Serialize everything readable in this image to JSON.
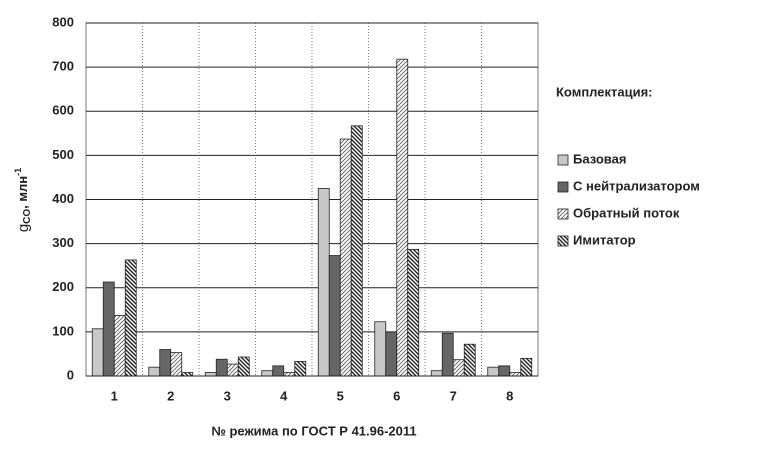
{
  "chart_data": {
    "type": "bar",
    "xlabel": "№ режима по ГОСТ Р 41.96-2011",
    "ylabel": {
      "main": "g",
      "sub": "CO",
      "text": ", млн",
      "sup": "-1"
    },
    "legend_title": "Комплектация:",
    "legend": "right",
    "categories": [
      "1",
      "2",
      "3",
      "4",
      "5",
      "6",
      "7",
      "8"
    ],
    "series": [
      {
        "name": "Базовая",
        "color": "#c8c8c8",
        "pattern": "solid",
        "values": [
          107,
          20,
          8,
          12,
          425,
          123,
          12,
          20
        ]
      },
      {
        "name": "С нейтрализатором",
        "color": "#666666",
        "pattern": "solid",
        "values": [
          213,
          60,
          38,
          23,
          273,
          100,
          97,
          23
        ]
      },
      {
        "name": "Обратный поток",
        "color": "#555555",
        "pattern": "forward",
        "values": [
          137,
          53,
          27,
          8,
          537,
          718,
          37,
          8
        ]
      },
      {
        "name": "Имитатор",
        "color": "#222222",
        "pattern": "backward",
        "values": [
          263,
          8,
          43,
          33,
          567,
          287,
          72,
          40
        ]
      }
    ],
    "ylim": [
      0,
      800
    ],
    "yticks": [
      0,
      100,
      200,
      300,
      400,
      500,
      600,
      700,
      800
    ],
    "grid": true
  }
}
